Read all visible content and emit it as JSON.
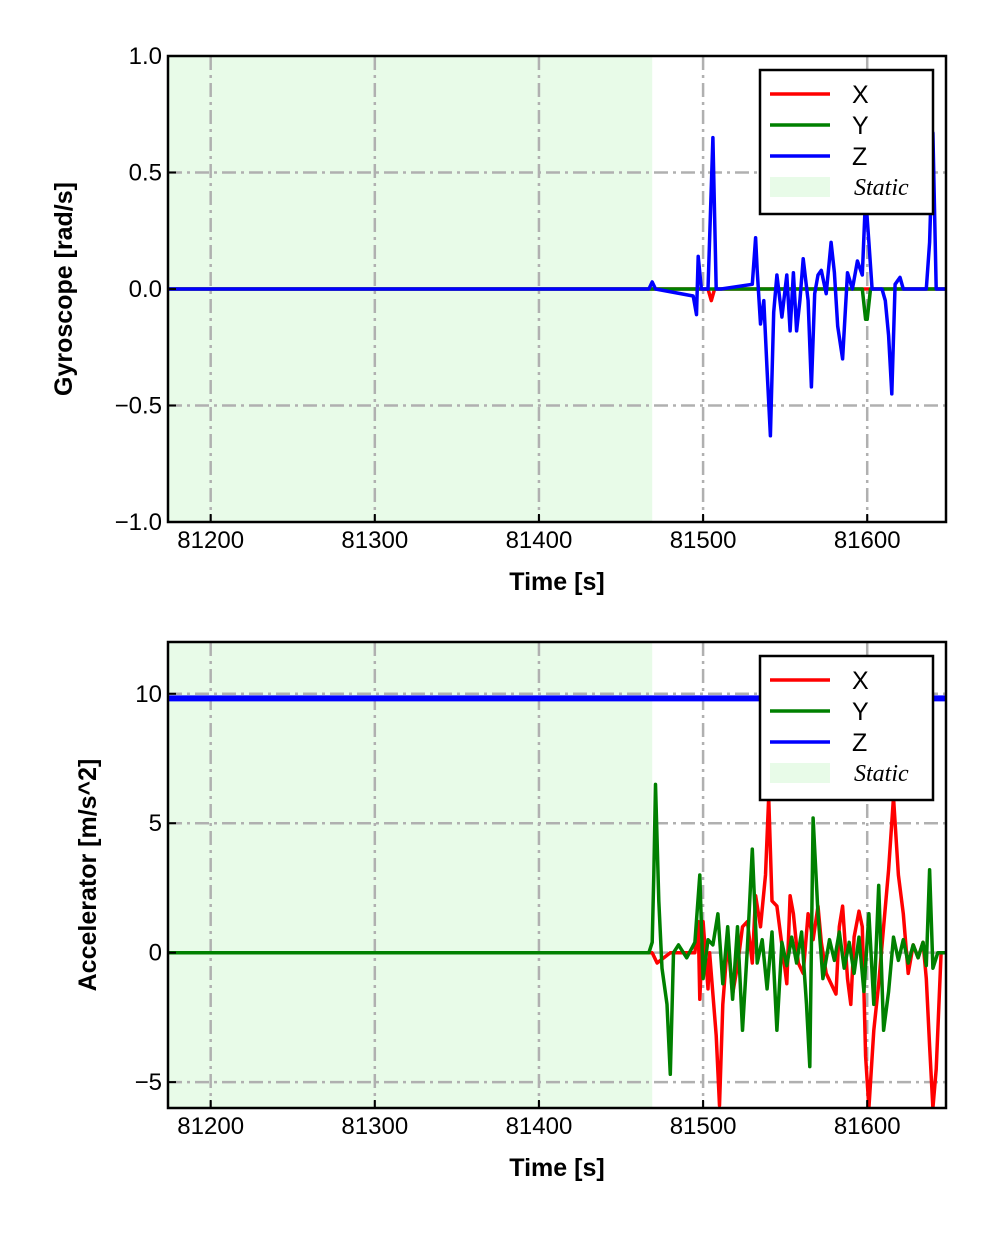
{
  "chart_data": [
    {
      "type": "line",
      "title": "",
      "xlabel": "Time [s]",
      "ylabel": "Gyroscope [rad/s]",
      "xlim": [
        81174,
        81648
      ],
      "ylim": [
        -1.0,
        1.0
      ],
      "xticks": [
        81200,
        81300,
        81400,
        81500,
        81600
      ],
      "yticks": [
        -1.0,
        -0.5,
        0.0,
        0.5,
        1.0
      ],
      "xtick_labels": [
        "81200",
        "81300",
        "81400",
        "81500",
        "81600"
      ],
      "ytick_labels": [
        "−1.0",
        "−0.5",
        "0.0",
        "0.5",
        "1.0"
      ],
      "grid": true,
      "grid_style": "dash-dot",
      "legend_position": "top-right",
      "shaded_region": {
        "label": "Static",
        "x_start": 81174,
        "x_end": 81469,
        "color": "#e8fbe8"
      },
      "colors": {
        "X": "#ff0000",
        "Y": "#008000",
        "Z": "#0000ff",
        "grid": "#b0b0b0"
      },
      "series": [
        {
          "name": "X",
          "x": [
            81174,
            81469,
            81500,
            81503,
            81505,
            81507,
            81510,
            81600,
            81648
          ],
          "y": [
            0,
            0,
            0,
            0,
            -0.05,
            0,
            0,
            0,
            0
          ]
        },
        {
          "name": "Y",
          "x": [
            81174,
            81469,
            81560,
            81597,
            81599,
            81600,
            81602,
            81648
          ],
          "y": [
            0,
            0,
            0,
            0,
            -0.13,
            -0.13,
            0,
            0
          ]
        },
        {
          "name": "Z",
          "x": [
            81174,
            81467,
            81469,
            81471,
            81494,
            81496,
            81497,
            81499,
            81503,
            81506,
            81508,
            81511,
            81530,
            81532,
            81533,
            81535,
            81537,
            81539,
            81541,
            81543,
            81545,
            81548,
            81551,
            81553,
            81555,
            81557,
            81559,
            81561,
            81564,
            81566,
            81568,
            81570,
            81572,
            81575,
            81578,
            81580,
            81582,
            81585,
            81588,
            81591,
            81594,
            81597,
            81599,
            81601,
            81603,
            81606,
            81609,
            81611,
            81613,
            81615,
            81617,
            81620,
            81622,
            81625,
            81636,
            81638,
            81640,
            81642,
            81648
          ],
          "y": [
            0,
            0,
            0.03,
            0,
            -0.03,
            -0.11,
            0.14,
            0,
            0,
            0.65,
            0,
            0,
            0.02,
            0.22,
            0.08,
            -0.15,
            -0.05,
            -0.35,
            -0.63,
            -0.1,
            0.06,
            -0.12,
            0.06,
            -0.18,
            0.07,
            -0.18,
            -0.05,
            0.13,
            -0.05,
            -0.42,
            -0.02,
            0.06,
            0.08,
            -0.02,
            0.2,
            0.07,
            -0.16,
            -0.3,
            0.07,
            0.0,
            0.12,
            0.06,
            0.4,
            0.2,
            0,
            0,
            0,
            -0.05,
            -0.2,
            -0.45,
            0.02,
            0.05,
            0,
            0,
            0,
            0.2,
            0.67,
            0,
            0
          ]
        }
      ]
    },
    {
      "type": "line",
      "title": "",
      "xlabel": "Time [s]",
      "ylabel": "Accelerator [m/s^2]",
      "xlim": [
        81174,
        81648
      ],
      "ylim": [
        -6,
        12
      ],
      "xticks": [
        81200,
        81300,
        81400,
        81500,
        81600
      ],
      "yticks": [
        -5,
        0,
        5,
        10
      ],
      "xtick_labels": [
        "81200",
        "81300",
        "81400",
        "81500",
        "81600"
      ],
      "ytick_labels": [
        "−5",
        "0",
        "5",
        "10"
      ],
      "grid": true,
      "grid_style": "dash-dot",
      "legend_position": "top-right",
      "shaded_region": {
        "label": "Static",
        "x_start": 81174,
        "x_end": 81469,
        "color": "#e8fbe8"
      },
      "colors": {
        "X": "#ff0000",
        "Y": "#008000",
        "Z": "#0000ff",
        "grid": "#b0b0b0"
      },
      "series": [
        {
          "name": "X",
          "x": [
            81174,
            81469,
            81472,
            81480,
            81490,
            81495,
            81497,
            81498,
            81500,
            81503,
            81504,
            81506,
            81508,
            81510,
            81512,
            81515,
            81518,
            81521,
            81524,
            81527,
            81530,
            81532,
            81535,
            81538,
            81540,
            81542,
            81545,
            81548,
            81551,
            81553,
            81555,
            81558,
            81561,
            81564,
            81567,
            81570,
            81572,
            81575,
            81578,
            81581,
            81583,
            81585,
            81588,
            81590,
            81592,
            81595,
            81597,
            81599,
            81601,
            81604,
            81607,
            81610,
            81613,
            81616,
            81619,
            81622,
            81625,
            81628,
            81631,
            81634,
            81636,
            81638,
            81640,
            81642,
            81645,
            81648
          ],
          "y": [
            0,
            0,
            -0.4,
            0,
            0,
            0,
            1.2,
            -1.8,
            1.2,
            -1.4,
            0,
            -1.6,
            -3.2,
            -5.9,
            -2.0,
            0.5,
            -1.6,
            -0.5,
            1.0,
            1.2,
            -0.4,
            2.2,
            1.0,
            3.0,
            6.0,
            2.0,
            1.8,
            0.3,
            -1.2,
            2.2,
            1.5,
            -0.4,
            -0.8,
            1.5,
            0.5,
            1.8,
            0.4,
            -0.8,
            -1.2,
            -1.6,
            1.0,
            1.8,
            -1.0,
            -2.0,
            0.6,
            1.6,
            1.0,
            -4.0,
            -6.0,
            -3.0,
            -1.2,
            1.0,
            3.2,
            6.0,
            3.0,
            1.5,
            -0.8,
            0.3,
            -0.2,
            0.4,
            -1.0,
            -3.6,
            -6.0,
            -4.5,
            0,
            0
          ]
        },
        {
          "name": "Y",
          "x": [
            81174,
            81467,
            81469,
            81470,
            81471,
            81473,
            81475,
            81478,
            81480,
            81482,
            81485,
            81490,
            81495,
            81498,
            81500,
            81503,
            81506,
            81509,
            81512,
            81515,
            81518,
            81521,
            81524,
            81527,
            81530,
            81533,
            81536,
            81539,
            81542,
            81545,
            81548,
            81551,
            81554,
            81557,
            81560,
            81563,
            81565,
            81567,
            81570,
            81573,
            81577,
            81580,
            81583,
            81586,
            81589,
            81592,
            81595,
            81598,
            81601,
            81604,
            81607,
            81610,
            81613,
            81616,
            81619,
            81622,
            81625,
            81628,
            81631,
            81634,
            81636,
            81638,
            81640,
            81643,
            81648
          ],
          "y": [
            0,
            0,
            0.4,
            3.0,
            6.5,
            2.0,
            -0.6,
            -2.0,
            -4.7,
            0,
            0.3,
            -0.2,
            0.4,
            3.0,
            -1.0,
            0.5,
            0.3,
            1.5,
            -1.2,
            1.0,
            -1.8,
            1.0,
            -3.0,
            0.2,
            4.0,
            -0.4,
            0.5,
            -1.4,
            0.8,
            -3.0,
            0.4,
            -0.5,
            0.6,
            -0.4,
            0.8,
            -2.0,
            -4.4,
            5.2,
            1.5,
            -1.0,
            0.5,
            -0.3,
            0.8,
            -0.6,
            0.4,
            -0.8,
            0.6,
            -1.5,
            1.5,
            -2.0,
            2.6,
            -3.0,
            -1.5,
            0.6,
            -0.3,
            0.5,
            -0.4,
            0.3,
            -0.2,
            0.4,
            -0.5,
            3.2,
            -0.6,
            0,
            0
          ]
        },
        {
          "name": "Z",
          "x": [
            81174,
            81648
          ],
          "y": [
            9.82,
            9.82
          ]
        }
      ]
    }
  ]
}
